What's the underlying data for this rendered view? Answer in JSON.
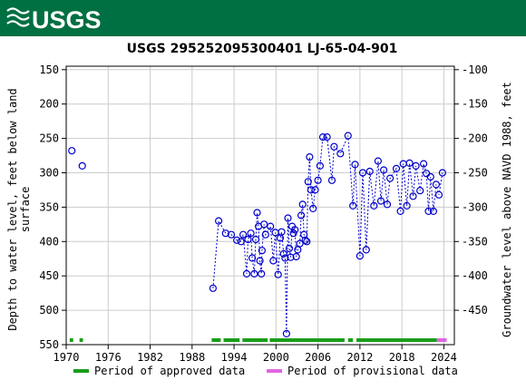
{
  "header": {
    "logo_text": "USGS",
    "colors": {
      "banner": "#006f41",
      "logo": "#ffffff"
    }
  },
  "chart_data": {
    "type": "scatter",
    "title": "USGS 295252095300401 LJ-65-04-901",
    "ylabel_left": [
      "Depth to water level, feet below land",
      "surface"
    ],
    "ylabel_right": "Groundwater level above NAVD 1988, feet",
    "x_ticks": [
      "1970",
      "1976",
      "1982",
      "1988",
      "1994",
      "2000",
      "2006",
      "2012",
      "2018",
      "2024"
    ],
    "xlim": [
      1970,
      2025.5
    ],
    "ylim_left": [
      550,
      145
    ],
    "y_ticks_left": [
      "150",
      "200",
      "250",
      "300",
      "350",
      "400",
      "450",
      "500",
      "550"
    ],
    "y_ticks_right": [
      "-100",
      "-150",
      "-200",
      "-250",
      "-300",
      "-350",
      "-400",
      "-450"
    ],
    "grid": true,
    "series": [
      {
        "name": "Period of approved data",
        "color": "#0000cc",
        "points": [
          [
            1970.8,
            268
          ],
          [
            1972.3,
            290
          ],
          [
            1991.0,
            468
          ],
          [
            1991.8,
            370
          ],
          [
            1992.8,
            388
          ],
          [
            1993.6,
            390
          ],
          [
            1994.4,
            398
          ],
          [
            1995.0,
            400
          ],
          [
            1995.3,
            390
          ],
          [
            1995.8,
            447
          ],
          [
            1996.0,
            397
          ],
          [
            1996.4,
            388
          ],
          [
            1996.6,
            424
          ],
          [
            1996.9,
            447
          ],
          [
            1997.1,
            397
          ],
          [
            1997.3,
            358
          ],
          [
            1997.5,
            378
          ],
          [
            1997.7,
            428
          ],
          [
            1997.9,
            447
          ],
          [
            1998.0,
            413
          ],
          [
            1998.3,
            375
          ],
          [
            1998.5,
            390
          ],
          [
            1999.2,
            378
          ],
          [
            1999.6,
            428
          ],
          [
            1999.9,
            387
          ],
          [
            2000.3,
            448
          ],
          [
            2000.6,
            395
          ],
          [
            2000.8,
            386
          ],
          [
            2001.1,
            418
          ],
          [
            2001.3,
            424
          ],
          [
            2001.5,
            534
          ],
          [
            2001.7,
            366
          ],
          [
            2001.9,
            410
          ],
          [
            2002.1,
            423
          ],
          [
            2002.3,
            378
          ],
          [
            2002.5,
            388
          ],
          [
            2002.7,
            383
          ],
          [
            2002.9,
            422
          ],
          [
            2003.1,
            412
          ],
          [
            2003.4,
            403
          ],
          [
            2003.6,
            362
          ],
          [
            2003.8,
            346
          ],
          [
            2004.0,
            390
          ],
          [
            2004.2,
            398
          ],
          [
            2004.4,
            400
          ],
          [
            2004.6,
            313
          ],
          [
            2004.8,
            277
          ],
          [
            2005.0,
            325
          ],
          [
            2005.3,
            352
          ],
          [
            2005.6,
            325
          ],
          [
            2006.0,
            311
          ],
          [
            2006.3,
            290
          ],
          [
            2006.7,
            248
          ],
          [
            2007.3,
            248
          ],
          [
            2008.0,
            311
          ],
          [
            2008.3,
            262
          ],
          [
            2009.2,
            272
          ],
          [
            2010.3,
            246
          ],
          [
            2011.0,
            348
          ],
          [
            2011.3,
            288
          ],
          [
            2012.0,
            421
          ],
          [
            2012.4,
            300
          ],
          [
            2012.9,
            412
          ],
          [
            2013.4,
            298
          ],
          [
            2014.0,
            348
          ],
          [
            2014.6,
            283
          ],
          [
            2015.0,
            341
          ],
          [
            2015.4,
            296
          ],
          [
            2015.9,
            346
          ],
          [
            2016.3,
            308
          ],
          [
            2017.2,
            294
          ],
          [
            2017.8,
            356
          ],
          [
            2018.2,
            287
          ],
          [
            2018.7,
            348
          ],
          [
            2019.1,
            286
          ],
          [
            2019.6,
            334
          ],
          [
            2020.0,
            290
          ],
          [
            2020.6,
            326
          ],
          [
            2021.1,
            287
          ],
          [
            2021.5,
            301
          ],
          [
            2021.8,
            356
          ],
          [
            2022.1,
            306
          ],
          [
            2022.5,
            356
          ],
          [
            2022.9,
            317
          ],
          [
            2023.3,
            332
          ],
          [
            2023.8,
            300
          ]
        ]
      }
    ],
    "legend": {
      "approved_label": "Period of approved data",
      "provisional_label": "Period of provisional data",
      "approved_color": "#1a9e1a",
      "provisional_color": "#e066e0"
    },
    "approved_periods": [
      [
        1970.5,
        1971.0
      ],
      [
        1971.9,
        1972.4
      ],
      [
        1990.8,
        1992.1
      ],
      [
        1992.5,
        1994.8
      ],
      [
        1995.2,
        1998.8
      ],
      [
        1999.1,
        2009.8
      ],
      [
        2010.3,
        2011.0
      ],
      [
        2011.5,
        2023.0
      ]
    ],
    "provisional_periods": [
      [
        2023.0,
        2024.4
      ]
    ]
  }
}
